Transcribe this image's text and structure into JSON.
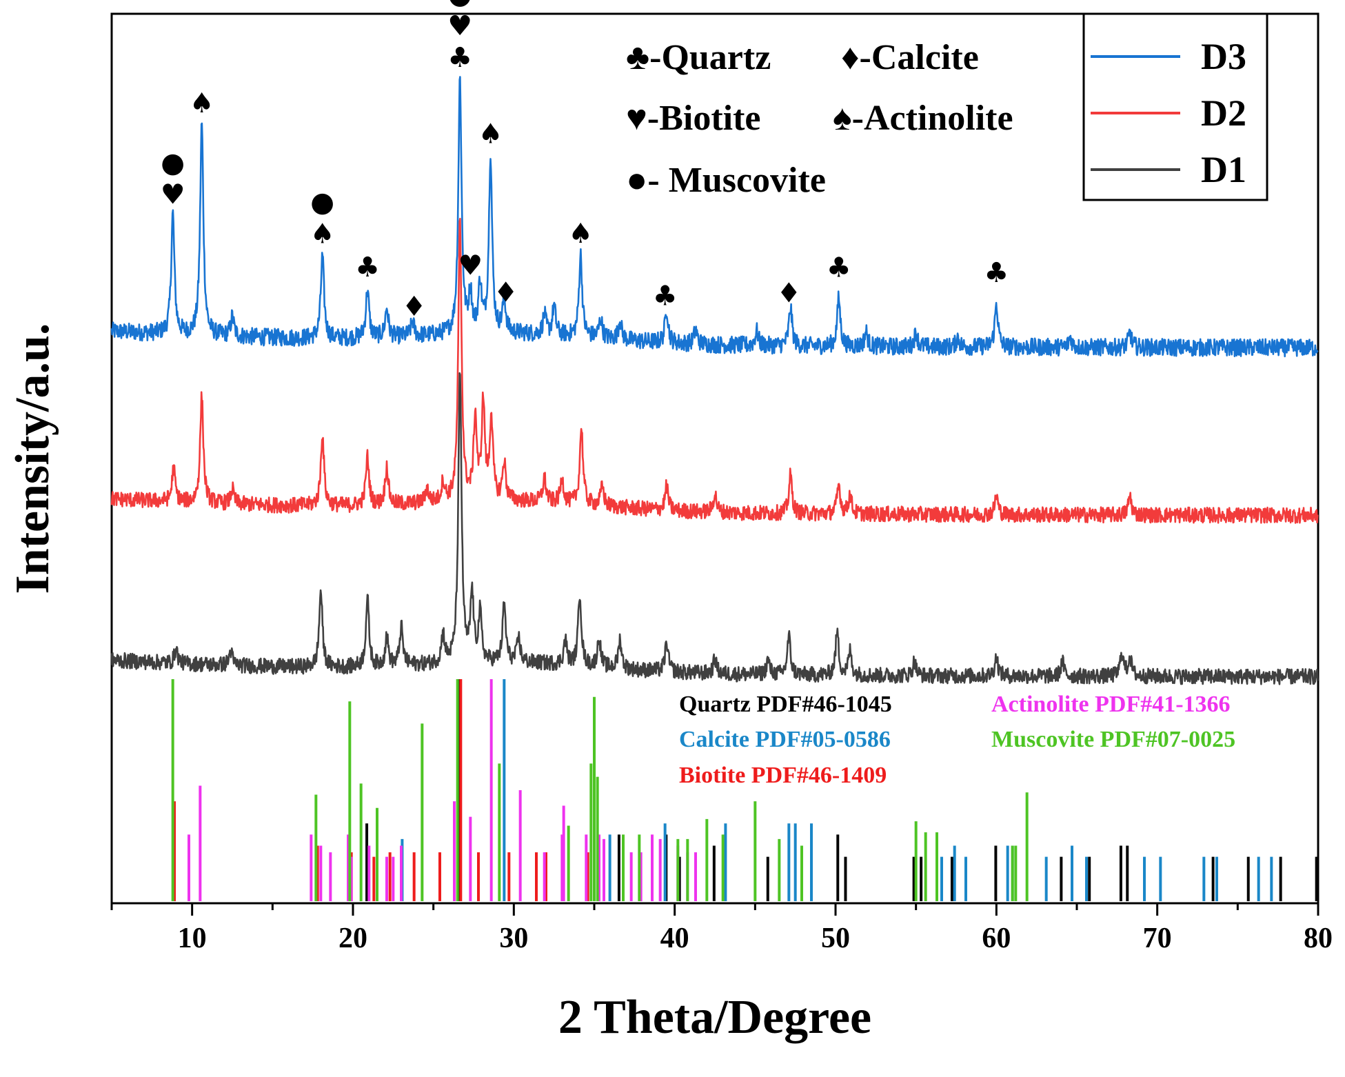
{
  "chart_data": {
    "type": "line",
    "title": "",
    "xlabel": "2 Theta/Degree",
    "ylabel": "Intensity/a.u.",
    "xlim": [
      5,
      80
    ],
    "xticks": [
      "10",
      "20",
      "30",
      "40",
      "50",
      "60",
      "70",
      "80"
    ],
    "xtick_values": [
      10,
      20,
      30,
      40,
      50,
      60,
      70,
      80
    ],
    "colors": {
      "D3": "#1874d2",
      "D2": "#f23b3b",
      "D1": "#404040",
      "quartz": "#000000",
      "calcite": "#1a87c8",
      "biotite": "#ee1c1c",
      "actinolite": "#ee33ee",
      "muscovite": "#4ec424"
    },
    "legend": {
      "position": "top-right",
      "entries": [
        "D3",
        "D2",
        "D1"
      ]
    },
    "phase_key": [
      {
        "symbol": "♣",
        "label": "-Quartz"
      },
      {
        "symbol": "♦",
        "label": "-Calcite"
      },
      {
        "symbol": "♥",
        "label": "-Biotite"
      },
      {
        "symbol": "♠",
        "label": "-Actinolite"
      },
      {
        "symbol": "●",
        "label": "- Muscovite"
      }
    ],
    "series": [
      {
        "name": "D3",
        "baseline": 0.0,
        "noise": 0.018,
        "peaks": [
          [
            8.8,
            0.25
          ],
          [
            10.6,
            0.44
          ],
          [
            12.5,
            0.04
          ],
          [
            18.1,
            0.17
          ],
          [
            20.9,
            0.1
          ],
          [
            22.1,
            0.06
          ],
          [
            23.7,
            0.03
          ],
          [
            26.65,
            0.53
          ],
          [
            27.3,
            0.08
          ],
          [
            27.9,
            0.1
          ],
          [
            28.55,
            0.37
          ],
          [
            29.4,
            0.07
          ],
          [
            31.9,
            0.04
          ],
          [
            32.5,
            0.06
          ],
          [
            34.15,
            0.17
          ],
          [
            35.4,
            0.04
          ],
          [
            36.6,
            0.04
          ],
          [
            39.5,
            0.07
          ],
          [
            41.3,
            0.03
          ],
          [
            45.1,
            0.03
          ],
          [
            47.2,
            0.08
          ],
          [
            50.2,
            0.1
          ],
          [
            51.9,
            0.03
          ],
          [
            55.0,
            0.03
          ],
          [
            57.6,
            0.02
          ],
          [
            60.0,
            0.09
          ],
          [
            64.6,
            0.02
          ],
          [
            68.3,
            0.03
          ]
        ]
      },
      {
        "name": "D2",
        "baseline": 0.0,
        "noise": 0.016,
        "peaks": [
          [
            8.85,
            0.07
          ],
          [
            10.6,
            0.22
          ],
          [
            12.5,
            0.03
          ],
          [
            18.1,
            0.15
          ],
          [
            20.9,
            0.1
          ],
          [
            22.1,
            0.08
          ],
          [
            24.6,
            0.03
          ],
          [
            25.6,
            0.04
          ],
          [
            26.65,
            0.58
          ],
          [
            27.6,
            0.17
          ],
          [
            28.1,
            0.2
          ],
          [
            28.6,
            0.17
          ],
          [
            29.4,
            0.08
          ],
          [
            31.9,
            0.05
          ],
          [
            33.0,
            0.05
          ],
          [
            34.2,
            0.16
          ],
          [
            35.5,
            0.04
          ],
          [
            39.5,
            0.05
          ],
          [
            42.5,
            0.04
          ],
          [
            47.2,
            0.08
          ],
          [
            50.2,
            0.06
          ],
          [
            50.9,
            0.04
          ],
          [
            60.0,
            0.04
          ],
          [
            68.3,
            0.04
          ]
        ]
      },
      {
        "name": "D1",
        "baseline": 0.0,
        "noise": 0.016,
        "peaks": [
          [
            9.0,
            0.03
          ],
          [
            12.4,
            0.03
          ],
          [
            18.0,
            0.16
          ],
          [
            20.9,
            0.14
          ],
          [
            22.1,
            0.06
          ],
          [
            23.0,
            0.08
          ],
          [
            25.6,
            0.06
          ],
          [
            26.65,
            0.6
          ],
          [
            27.4,
            0.14
          ],
          [
            27.9,
            0.1
          ],
          [
            29.4,
            0.12
          ],
          [
            30.3,
            0.05
          ],
          [
            33.2,
            0.05
          ],
          [
            34.1,
            0.15
          ],
          [
            35.3,
            0.06
          ],
          [
            36.6,
            0.06
          ],
          [
            39.5,
            0.06
          ],
          [
            42.5,
            0.03
          ],
          [
            45.8,
            0.03
          ],
          [
            47.1,
            0.08
          ],
          [
            50.1,
            0.09
          ],
          [
            50.9,
            0.05
          ],
          [
            54.9,
            0.03
          ],
          [
            60.0,
            0.04
          ],
          [
            64.1,
            0.03
          ],
          [
            67.8,
            0.05
          ],
          [
            68.3,
            0.04
          ]
        ]
      }
    ],
    "annotations": [
      {
        "x": 8.8,
        "symbols": [
          "●",
          "♥"
        ]
      },
      {
        "x": 10.6,
        "symbols": [
          "♠"
        ]
      },
      {
        "x": 18.1,
        "symbols": [
          "●",
          "♠"
        ]
      },
      {
        "x": 20.9,
        "symbols": [
          "♣"
        ]
      },
      {
        "x": 23.8,
        "symbols": [
          "♦"
        ]
      },
      {
        "x": 26.65,
        "symbols": [
          "●",
          "♥",
          "♣"
        ]
      },
      {
        "x": 27.3,
        "symbols": [
          "♥"
        ]
      },
      {
        "x": 28.55,
        "symbols": [
          "♠"
        ]
      },
      {
        "x": 29.5,
        "symbols": [
          "♦"
        ]
      },
      {
        "x": 34.15,
        "symbols": [
          "♠"
        ]
      },
      {
        "x": 39.4,
        "symbols": [
          "♣"
        ]
      },
      {
        "x": 47.1,
        "symbols": [
          "♦"
        ]
      },
      {
        "x": 50.2,
        "symbols": [
          "♣"
        ]
      },
      {
        "x": 60.0,
        "symbols": [
          "♣"
        ]
      }
    ],
    "reference_patterns": [
      {
        "phase": "quartz",
        "label": "Quartz PDF#46-1045",
        "lines": [
          [
            20.86,
            0.35
          ],
          [
            26.64,
            1.0
          ],
          [
            36.54,
            0.3
          ],
          [
            39.47,
            0.3
          ],
          [
            40.3,
            0.2
          ],
          [
            42.45,
            0.25
          ],
          [
            45.79,
            0.2
          ],
          [
            50.14,
            0.3
          ],
          [
            50.62,
            0.2
          ],
          [
            54.87,
            0.2
          ],
          [
            55.32,
            0.2
          ],
          [
            57.24,
            0.2
          ],
          [
            59.96,
            0.25
          ],
          [
            64.03,
            0.2
          ],
          [
            65.78,
            0.2
          ],
          [
            67.74,
            0.25
          ],
          [
            68.14,
            0.25
          ],
          [
            73.47,
            0.2
          ],
          [
            75.66,
            0.2
          ],
          [
            77.67,
            0.2
          ],
          [
            79.9,
            0.2
          ]
        ]
      },
      {
        "phase": "calcite",
        "label": "Calcite PDF#05-0586",
        "lines": [
          [
            23.06,
            0.28
          ],
          [
            29.4,
            1.0
          ],
          [
            31.4,
            0.2
          ],
          [
            35.97,
            0.3
          ],
          [
            39.4,
            0.35
          ],
          [
            43.16,
            0.35
          ],
          [
            47.1,
            0.35
          ],
          [
            47.5,
            0.35
          ],
          [
            48.5,
            0.35
          ],
          [
            56.6,
            0.2
          ],
          [
            57.4,
            0.25
          ],
          [
            58.1,
            0.2
          ],
          [
            60.7,
            0.25
          ],
          [
            61.0,
            0.25
          ],
          [
            63.1,
            0.2
          ],
          [
            64.7,
            0.25
          ],
          [
            65.6,
            0.2
          ],
          [
            69.2,
            0.2
          ],
          [
            70.2,
            0.2
          ],
          [
            72.9,
            0.2
          ],
          [
            73.7,
            0.2
          ],
          [
            76.3,
            0.2
          ],
          [
            77.1,
            0.2
          ]
        ]
      },
      {
        "phase": "biotite",
        "label": "Biotite PDF#46-1409",
        "lines": [
          [
            8.9,
            0.45
          ],
          [
            17.8,
            0.25
          ],
          [
            19.9,
            0.22
          ],
          [
            21.3,
            0.2
          ],
          [
            22.3,
            0.22
          ],
          [
            23.8,
            0.22
          ],
          [
            25.4,
            0.22
          ],
          [
            26.7,
            1.0
          ],
          [
            27.8,
            0.22
          ],
          [
            29.7,
            0.22
          ],
          [
            31.4,
            0.22
          ],
          [
            32.0,
            0.22
          ],
          [
            34.6,
            0.22
          ]
        ]
      },
      {
        "phase": "actinolite",
        "label": "Actinolite PDF#41-1366",
        "lines": [
          [
            9.8,
            0.3
          ],
          [
            10.5,
            0.52
          ],
          [
            17.4,
            0.3
          ],
          [
            18.0,
            0.25
          ],
          [
            18.6,
            0.22
          ],
          [
            19.7,
            0.3
          ],
          [
            19.9,
            0.2
          ],
          [
            21.0,
            0.25
          ],
          [
            22.1,
            0.2
          ],
          [
            22.5,
            0.2
          ],
          [
            23.0,
            0.25
          ],
          [
            26.3,
            0.45
          ],
          [
            27.3,
            0.38
          ],
          [
            28.6,
            1.0
          ],
          [
            30.4,
            0.5
          ],
          [
            31.9,
            0.22
          ],
          [
            33.0,
            0.3
          ],
          [
            33.1,
            0.43
          ],
          [
            34.5,
            0.3
          ],
          [
            35.3,
            0.3
          ],
          [
            35.6,
            0.28
          ],
          [
            36.8,
            0.22
          ],
          [
            37.3,
            0.22
          ],
          [
            37.9,
            0.22
          ],
          [
            38.6,
            0.3
          ],
          [
            39.1,
            0.28
          ],
          [
            40.2,
            0.25
          ],
          [
            40.8,
            0.22
          ],
          [
            41.3,
            0.22
          ]
        ]
      },
      {
        "phase": "muscovite",
        "label": "Muscovite PDF#07-0025",
        "lines": [
          [
            8.8,
            1.0
          ],
          [
            17.7,
            0.48
          ],
          [
            19.8,
            0.9
          ],
          [
            20.5,
            0.53
          ],
          [
            21.5,
            0.42
          ],
          [
            24.3,
            0.8
          ],
          [
            26.5,
            1.0
          ],
          [
            29.1,
            0.62
          ],
          [
            33.4,
            0.34
          ],
          [
            34.8,
            0.62
          ],
          [
            35.0,
            0.92
          ],
          [
            35.2,
            0.56
          ],
          [
            36.8,
            0.3
          ],
          [
            37.8,
            0.3
          ],
          [
            40.2,
            0.28
          ],
          [
            40.8,
            0.28
          ],
          [
            42.0,
            0.37
          ],
          [
            43.0,
            0.3
          ],
          [
            45.0,
            0.45
          ],
          [
            46.5,
            0.28
          ],
          [
            47.9,
            0.25
          ],
          [
            55.0,
            0.36
          ],
          [
            55.6,
            0.31
          ],
          [
            56.3,
            0.31
          ],
          [
            61.0,
            0.25
          ],
          [
            61.2,
            0.25
          ],
          [
            61.9,
            0.49
          ]
        ]
      }
    ]
  }
}
